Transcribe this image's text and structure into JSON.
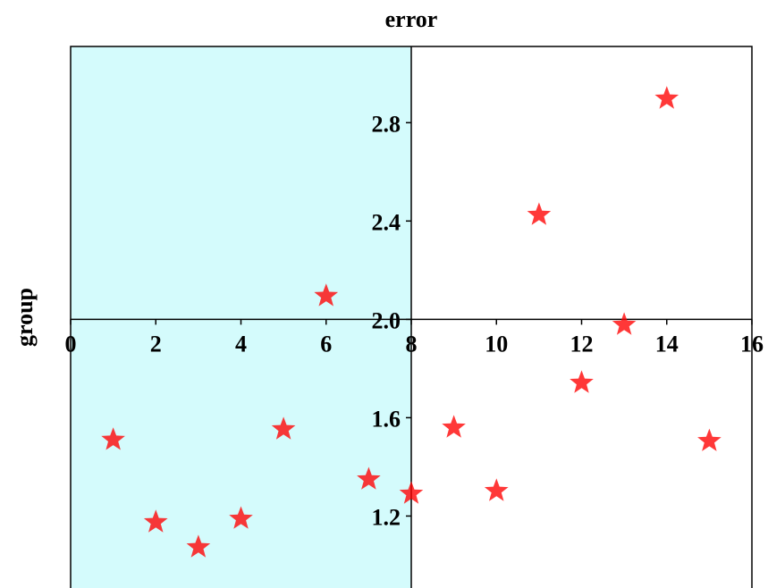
{
  "chart_data": {
    "type": "scatter",
    "title": "error",
    "y_label": "group",
    "x": [
      1,
      2,
      3,
      4,
      5,
      6,
      7,
      8,
      9,
      10,
      11,
      12,
      13,
      14,
      15
    ],
    "values": [
      1.51,
      1.175,
      1.073,
      1.189,
      1.553,
      2.095,
      1.349,
      1.291,
      1.56,
      1.302,
      2.425,
      1.742,
      1.978,
      2.898,
      1.505
    ],
    "color": "#ff0000",
    "marker": "star",
    "xlim": [
      0,
      16
    ],
    "ylim": [
      0.9,
      3.11
    ],
    "xticks": [
      0,
      2,
      4,
      6,
      8,
      10,
      12,
      14,
      16
    ],
    "yticks": [
      {
        "value": 1.2,
        "label": "1.2"
      },
      {
        "value": 1.6,
        "label": "1.6"
      },
      {
        "value": 2.0,
        "label": "2.0"
      },
      {
        "value": 2.4,
        "label": "2.4"
      },
      {
        "value": 2.8,
        "label": "2.8"
      }
    ],
    "shade": {
      "x": [
        0,
        8
      ],
      "color": "#d4fbfc"
    },
    "axes_cross": {
      "x": 8,
      "y": 2.0
    }
  }
}
